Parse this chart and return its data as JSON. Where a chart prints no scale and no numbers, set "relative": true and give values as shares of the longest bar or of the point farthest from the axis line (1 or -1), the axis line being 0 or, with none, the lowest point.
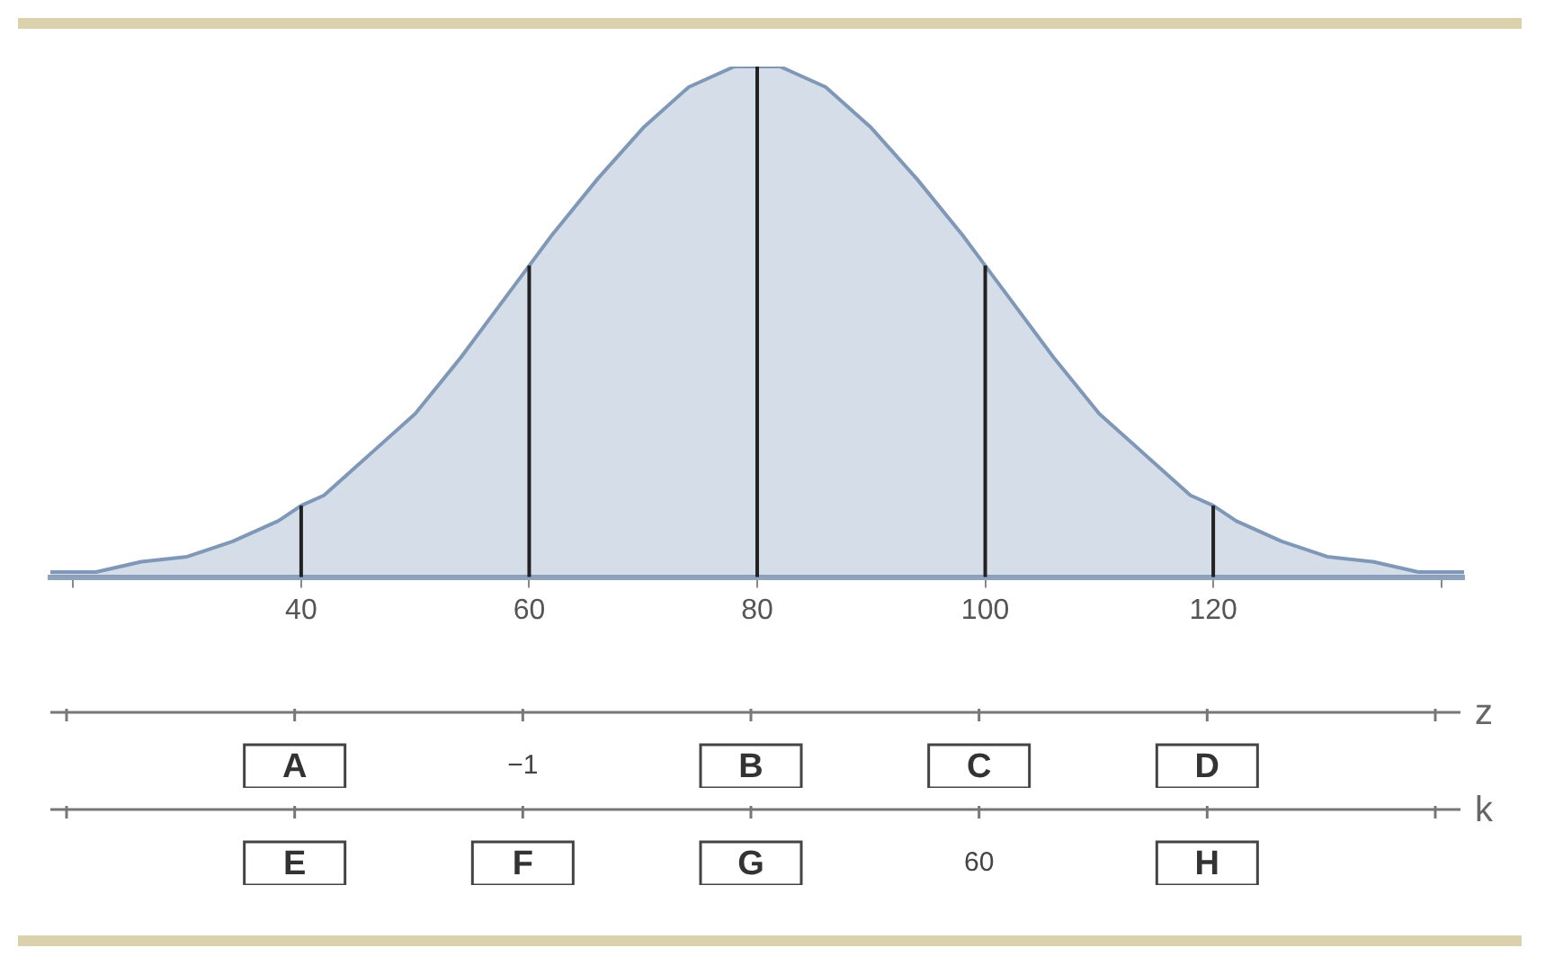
{
  "chart_data": [
    {
      "type": "area",
      "relative": true,
      "marker": "none",
      "x": [
        18,
        22,
        26,
        30,
        34,
        38,
        40,
        42,
        46,
        50,
        54,
        58,
        60,
        62,
        66,
        70,
        74,
        78,
        80,
        82,
        86,
        90,
        94,
        98,
        100,
        102,
        106,
        110,
        114,
        118,
        120,
        122,
        126,
        130,
        134,
        138,
        142
      ],
      "series": [
        {
          "color": "#7f98b8",
          "values": [
            0.01,
            0.01,
            0.03,
            0.04,
            0.07,
            0.11,
            0.14,
            0.16,
            0.24,
            0.32,
            0.43,
            0.55,
            0.61,
            0.67,
            0.78,
            0.88,
            0.96,
            1.0,
            1.0,
            1.0,
            0.96,
            0.88,
            0.78,
            0.67,
            0.61,
            0.55,
            0.43,
            0.32,
            0.24,
            0.16,
            0.14,
            0.11,
            0.07,
            0.04,
            0.03,
            0.01,
            0.01
          ]
        }
      ],
      "xlim": [
        18,
        142
      ],
      "xticks": [
        {
          "value": 20,
          "label": null
        },
        40,
        60,
        80,
        100,
        120,
        {
          "value": 140,
          "label": null
        }
      ],
      "ref_lines": [
        {
          "axis": "x",
          "value": 40,
          "color": "#222222"
        },
        {
          "axis": "x",
          "value": 60,
          "color": "#222222"
        },
        {
          "axis": "x",
          "value": 80,
          "color": "#222222"
        },
        {
          "axis": "x",
          "value": 100,
          "color": "#222222"
        },
        {
          "axis": "x",
          "value": 120,
          "color": "#222222"
        }
      ]
    },
    {
      "type": "other",
      "xlabel": "z",
      "categories": [
        null,
        "A",
        "−1",
        "B",
        "C",
        "D",
        null
      ]
    },
    {
      "type": "other",
      "xlabel": "k",
      "categories": [
        null,
        "E",
        "F",
        "G",
        "60",
        "H",
        null
      ]
    }
  ]
}
